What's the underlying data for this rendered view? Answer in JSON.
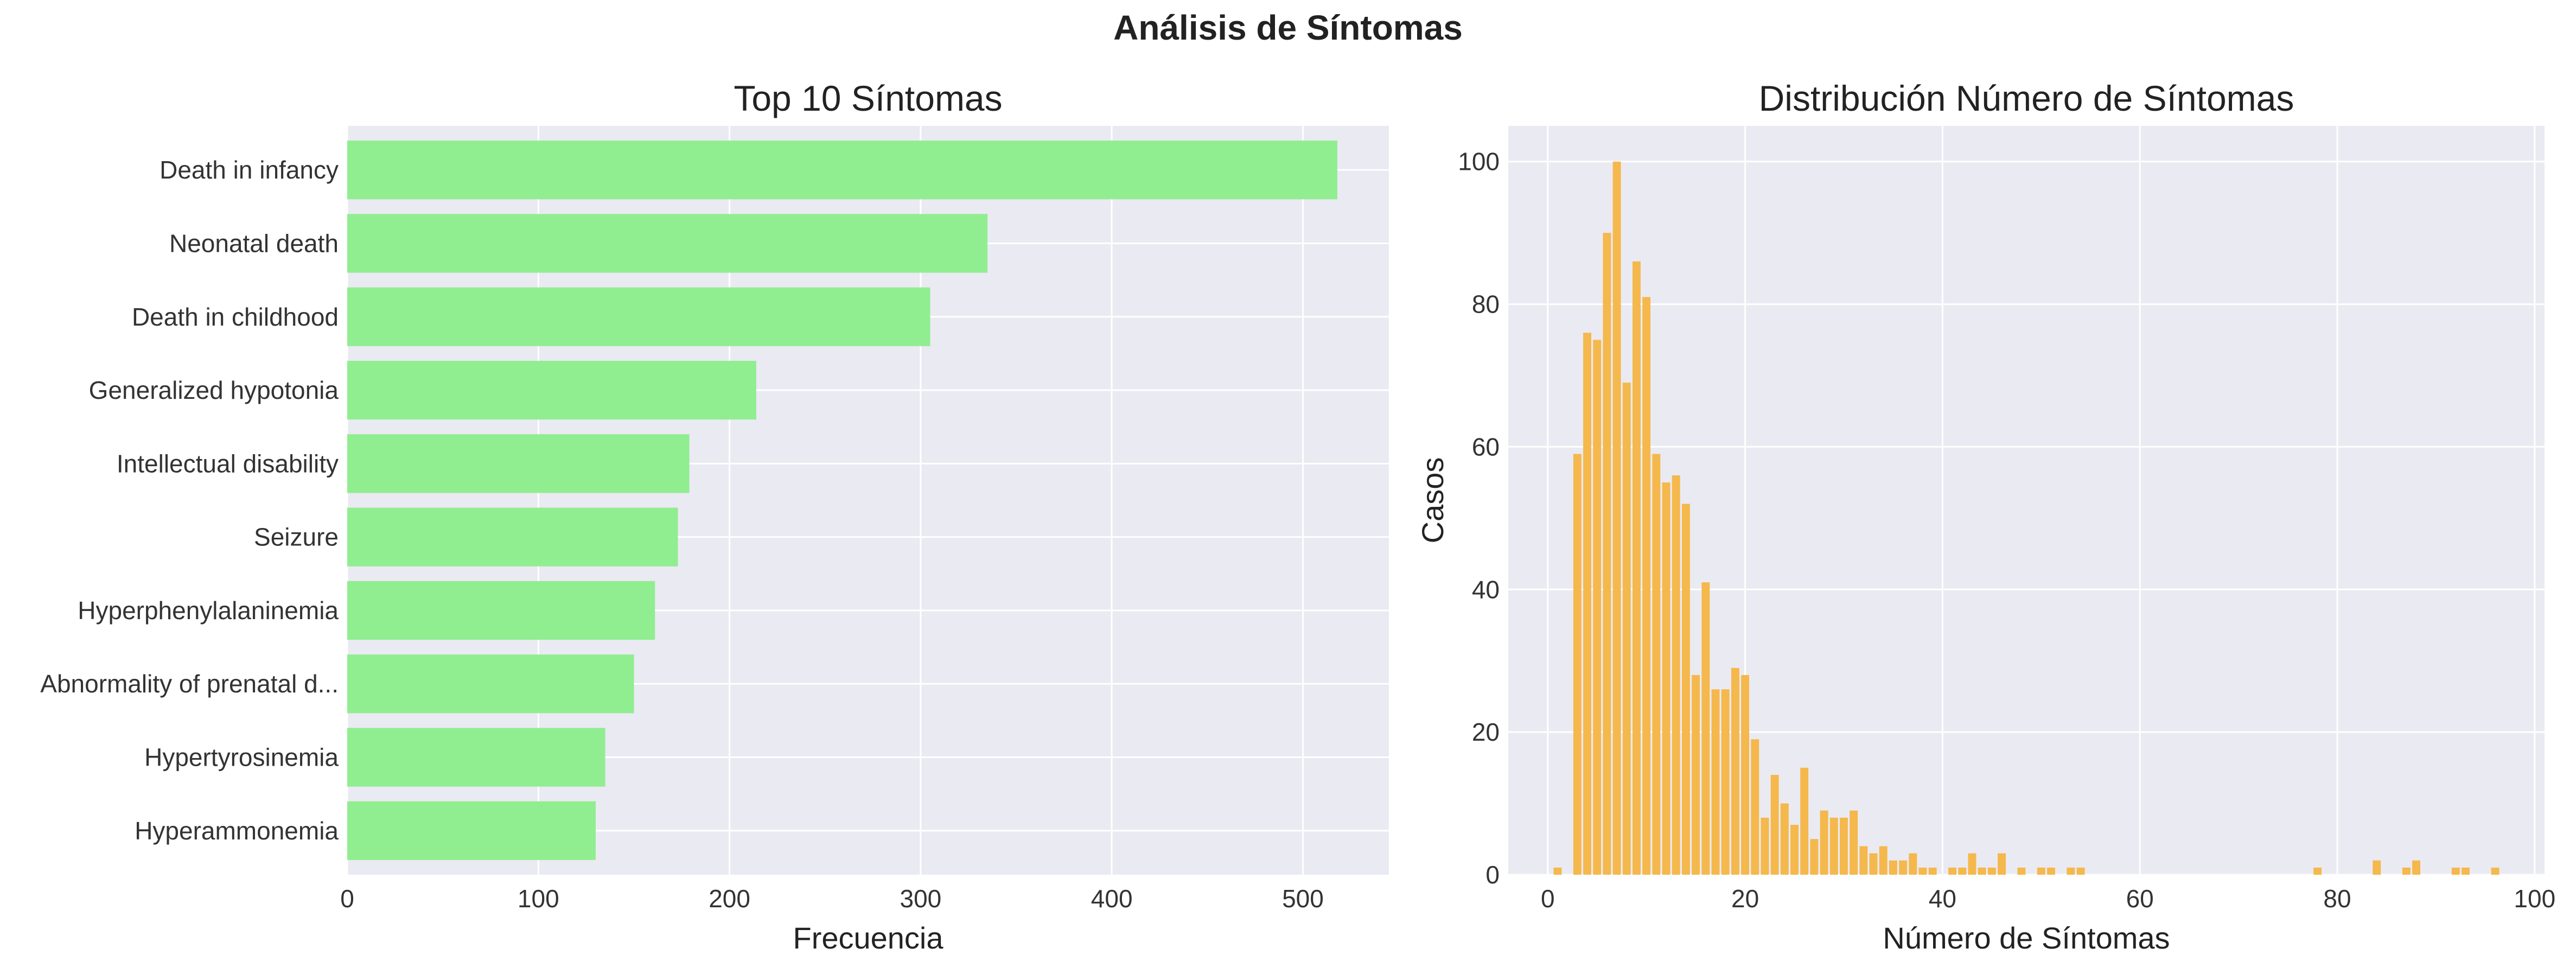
{
  "suptitle": "Análisis de Síntomas",
  "colors": {
    "background": "#eaeaf2",
    "grid": "#ffffff",
    "bar_left": "#90ee90",
    "bar_right": "#f5b84c"
  },
  "chart_data": [
    {
      "type": "bar",
      "orientation": "horizontal",
      "title": "Top 10 Síntomas",
      "xlabel": "Frecuencia",
      "ylabel": "",
      "categories": [
        "Death in infancy",
        "Neonatal death",
        "Death in childhood",
        "Generalized hypotonia",
        "Intellectual disability",
        "Seizure",
        "Hyperphenylalaninemia",
        "Abnormality of prenatal d...",
        "Hypertyrosinemia",
        "Hyperammonemia"
      ],
      "values": [
        518,
        335,
        305,
        214,
        179,
        173,
        161,
        150,
        135,
        130
      ],
      "xlim": [
        0,
        545
      ],
      "xticks": [
        0,
        100,
        200,
        300,
        400,
        500
      ],
      "grid": true
    },
    {
      "type": "bar",
      "title": "Distribución Número de Síntomas",
      "xlabel": "Número de Síntomas",
      "ylabel": "Casos",
      "x": [
        1,
        3,
        4,
        5,
        6,
        7,
        8,
        9,
        10,
        11,
        12,
        13,
        14,
        15,
        16,
        17,
        18,
        19,
        20,
        21,
        22,
        23,
        24,
        25,
        26,
        27,
        28,
        29,
        30,
        31,
        32,
        33,
        34,
        35,
        36,
        37,
        38,
        39,
        41,
        42,
        43,
        44,
        45,
        46,
        48,
        50,
        51,
        53,
        54,
        78,
        84,
        87,
        88,
        92,
        93,
        96
      ],
      "values": [
        1,
        59,
        76,
        75,
        90,
        100,
        69,
        86,
        81,
        59,
        55,
        56,
        52,
        28,
        41,
        26,
        26,
        29,
        28,
        19,
        8,
        14,
        10,
        7,
        15,
        5,
        9,
        8,
        8,
        9,
        4,
        3,
        4,
        2,
        2,
        3,
        1,
        1,
        1,
        1,
        3,
        1,
        1,
        3,
        1,
        1,
        1,
        1,
        1,
        1,
        2,
        1,
        2,
        1,
        1,
        1
      ],
      "xlim": [
        -4,
        101
      ],
      "ylim": [
        0,
        105
      ],
      "xticks": [
        0,
        20,
        40,
        60,
        80,
        100
      ],
      "yticks": [
        0,
        20,
        40,
        60,
        80,
        100
      ],
      "grid": true
    }
  ]
}
